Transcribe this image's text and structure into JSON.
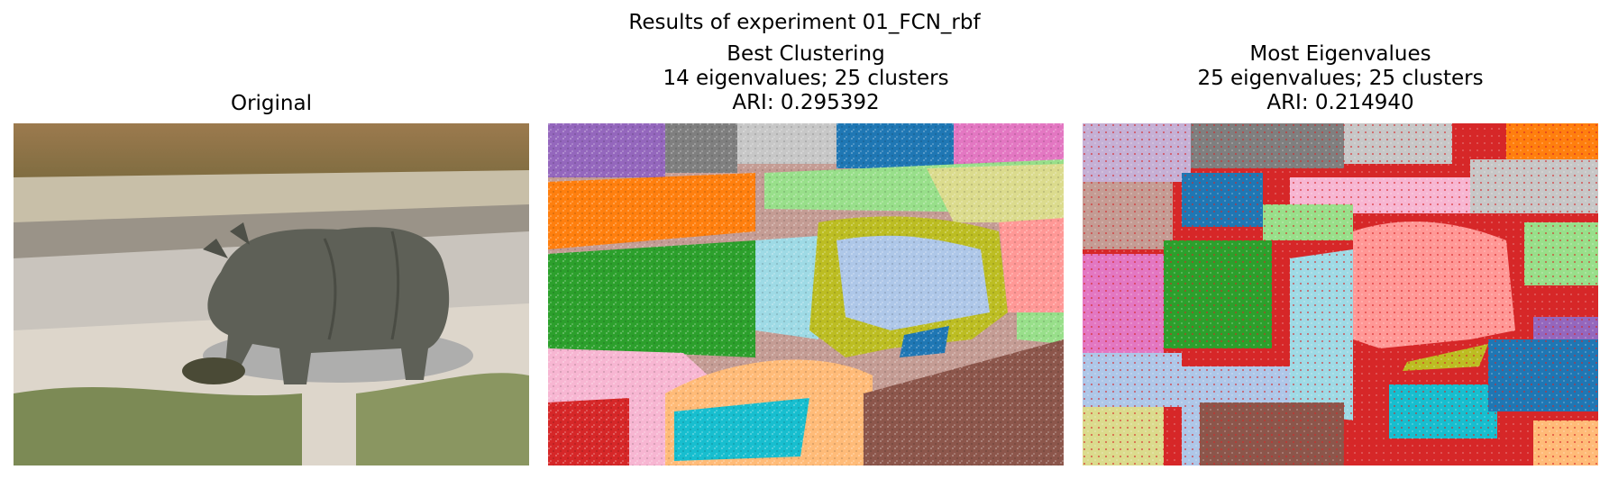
{
  "figure": {
    "suptitle": "Results of experiment 01_FCN_rbf"
  },
  "panels": [
    {
      "id": "original",
      "title_lines": [
        "Original"
      ],
      "content": "photo of a rhinoceros on a riverbank"
    },
    {
      "id": "best",
      "title_lines": [
        "Best Clustering",
        "14 eigenvalues; 25 clusters",
        "ARI: 0.295392"
      ]
    },
    {
      "id": "most",
      "title_lines": [
        "Most Eigenvalues",
        "25 eigenvalues; 25 clusters",
        "ARI: 0.214940"
      ]
    }
  ],
  "palette": [
    "#1f77b4",
    "#ff7f0e",
    "#2ca02c",
    "#d62728",
    "#9467bd",
    "#8c564b",
    "#e377c2",
    "#7f7f7f",
    "#bcbd22",
    "#17becf",
    "#aec7e8",
    "#ffbb78",
    "#98df8a",
    "#ff9896",
    "#c5b0d5",
    "#c49c94",
    "#f7b6d2",
    "#c7c7c7",
    "#dbdb8d",
    "#9edae5"
  ]
}
